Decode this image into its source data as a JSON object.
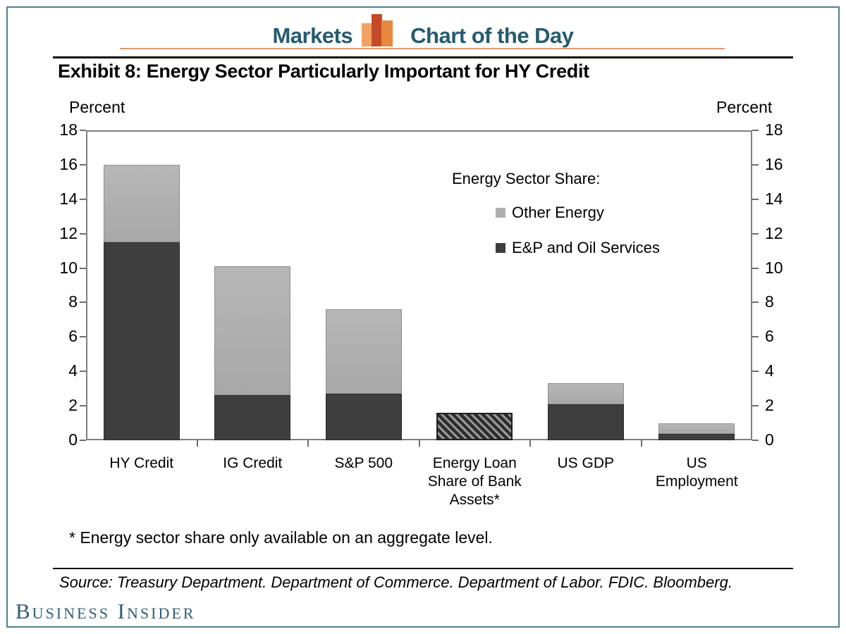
{
  "header": {
    "brand": "Markets",
    "title": "Chart of the Day",
    "logo_icon": "bar-chart-logo"
  },
  "exhibit_title": "Exhibit 8: Energy Sector Particularly Important for HY Credit",
  "axis_units": {
    "left": "Percent",
    "right": "Percent"
  },
  "chart_data": {
    "type": "bar",
    "stacked": true,
    "title": "Exhibit 8: Energy Sector Particularly Important for HY Credit",
    "categories": [
      "HY Credit",
      "IG Credit",
      "S&P 500",
      "Energy Loan Share of Bank Assets*",
      "US GDP",
      "US Employment"
    ],
    "category_label_lines": [
      [
        "HY Credit"
      ],
      [
        "IG Credit"
      ],
      [
        "S&P 500"
      ],
      [
        "Energy Loan",
        "Share of Bank",
        "Assets*"
      ],
      [
        "US GDP"
      ],
      [
        "US",
        "Employment"
      ]
    ],
    "series": [
      {
        "name": "E&P and Oil Services",
        "color": "#3e3e3e",
        "values": [
          11.5,
          2.6,
          2.7,
          null,
          2.1,
          0.35
        ]
      },
      {
        "name": "Other Energy",
        "color": "#afafaf",
        "values": [
          4.5,
          7.5,
          4.9,
          null,
          1.2,
          0.65
        ]
      }
    ],
    "totals": [
      16.0,
      10.1,
      7.6,
      1.6,
      3.3,
      1.0
    ],
    "aggregate_bar": {
      "category_index": 3,
      "value": 1.6,
      "style": "hatched",
      "note": "aggregate only"
    },
    "legend_title": "Energy Sector Share:",
    "legend": [
      {
        "label": "Other Energy",
        "color": "#afafaf"
      },
      {
        "label": "E&P and Oil Services",
        "color": "#3e3e3e"
      }
    ],
    "legend_position": "inside-upper-right",
    "ylabel": "Percent",
    "ylim": [
      0,
      18
    ],
    "ytick_step": 2,
    "grid": false
  },
  "footnote": "* Energy sector share only available on an aggregate level.",
  "source": "Source: Treasury Department. Department of Commerce. Department of Labor. FDIC. Bloomberg.",
  "branding": {
    "logo_text": "Business Insider"
  },
  "colors": {
    "accent_teal": "#265b70",
    "border_teal": "#4d7e93",
    "orange_rule": "#e09773",
    "logo_orange_light": "#f0a263",
    "logo_orange_dark": "#c54b28",
    "logo_orange_mid": "#e8873e",
    "bar_dark": "#3e3e3e",
    "bar_light": "#afafaf",
    "hatch_dark": "#2e2e2e",
    "hatch_light": "#9b9b9b",
    "plot_frame": "#7f7f7f"
  }
}
